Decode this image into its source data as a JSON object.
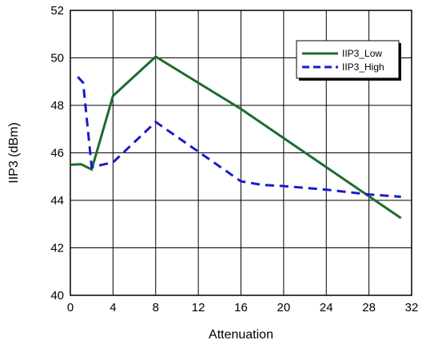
{
  "chart_data": {
    "type": "line",
    "xlabel": "Attenuation",
    "ylabel": "IIP3 (dBm)",
    "xlim": [
      0,
      32
    ],
    "ylim": [
      40,
      52
    ],
    "xticks": [
      0,
      4,
      8,
      12,
      16,
      20,
      24,
      28,
      32
    ],
    "yticks": [
      40,
      42,
      44,
      46,
      48,
      50,
      52
    ],
    "grid": true,
    "legend_position": "top-right",
    "series": [
      {
        "name": "IIP3_Low",
        "color": "#1e6b2e",
        "style": "solid",
        "points": [
          [
            0,
            45.5
          ],
          [
            1,
            45.52
          ],
          [
            2,
            45.3
          ],
          [
            4,
            48.4
          ],
          [
            8,
            50.05
          ],
          [
            16,
            47.85
          ],
          [
            31,
            43.25
          ]
        ]
      },
      {
        "name": "IIP3_High",
        "color": "#1a1acc",
        "style": "dashed",
        "points": [
          [
            0.7,
            49.2
          ],
          [
            1.2,
            48.95
          ],
          [
            2,
            45.4
          ],
          [
            4,
            45.6
          ],
          [
            8,
            47.3
          ],
          [
            16,
            44.8
          ],
          [
            18,
            44.65
          ],
          [
            20,
            44.6
          ],
          [
            24,
            44.45
          ],
          [
            28,
            44.25
          ],
          [
            31,
            44.15
          ]
        ]
      }
    ]
  }
}
